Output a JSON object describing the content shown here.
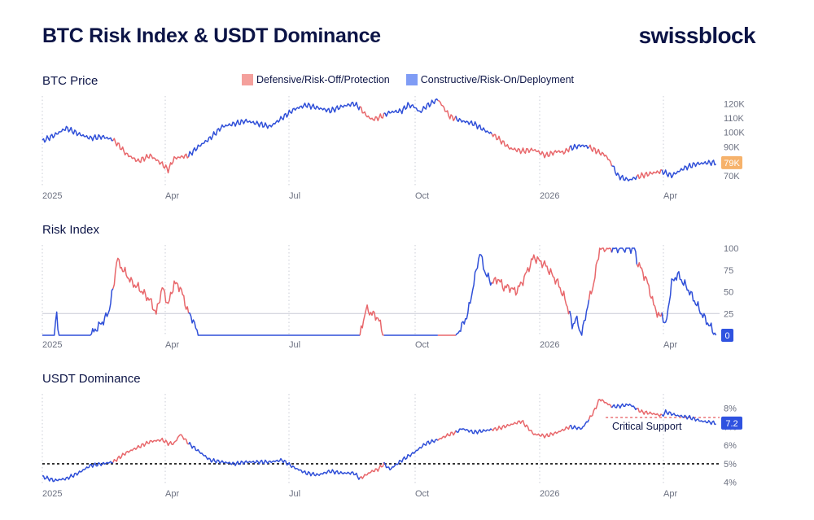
{
  "header": {
    "title": "BTC Risk Index & USDT Dominance",
    "brand": "swissblock"
  },
  "legend": {
    "defensive": {
      "label": "Defensive/Risk-Off/Protection",
      "color": "#f4a09c"
    },
    "constructive": {
      "label": "Constructive/Risk-On/Deployment",
      "color": "#7f9cf5"
    }
  },
  "colors": {
    "defensive_line": "#e8676b",
    "constructive_line": "#2f4fd8",
    "price_badge": "#f6b26b",
    "risk_badge": "#2f52e0",
    "usdt_badge": "#2f52e0"
  },
  "x_ticks": [
    "2025",
    "Apr",
    "Jul",
    "Oct",
    "2026",
    "Apr"
  ],
  "regime_segments": [
    {
      "start": 0,
      "end": 59,
      "regime": "constructive"
    },
    {
      "start": 59,
      "end": 122,
      "regime": "defensive"
    },
    {
      "start": 122,
      "end": 265,
      "regime": "constructive"
    },
    {
      "start": 265,
      "end": 285,
      "regime": "defensive"
    },
    {
      "start": 285,
      "end": 330,
      "regime": "constructive"
    },
    {
      "start": 330,
      "end": 345,
      "regime": "defensive"
    },
    {
      "start": 345,
      "end": 375,
      "regime": "constructive"
    },
    {
      "start": 375,
      "end": 440,
      "regime": "defensive"
    },
    {
      "start": 440,
      "end": 456,
      "regime": "constructive"
    },
    {
      "start": 456,
      "end": 475,
      "regime": "defensive"
    },
    {
      "start": 475,
      "end": 496,
      "regime": "constructive"
    },
    {
      "start": 496,
      "end": 517,
      "regime": "defensive"
    },
    {
      "start": 517,
      "end": 562,
      "regime": "constructive"
    }
  ],
  "chart_data": [
    {
      "type": "line",
      "title": "BTC Price",
      "y_ticks": [
        "120K",
        "110K",
        "100K",
        "90K",
        "80K",
        "70K"
      ],
      "ylim": [
        62000,
        123000
      ],
      "current_label": "79K",
      "series": [
        {
          "x": [
            0,
            10,
            20,
            30,
            40,
            50,
            59,
            65,
            70,
            80,
            90,
            100,
            105,
            110,
            122,
            130,
            140,
            150,
            160,
            170,
            180,
            190,
            200,
            210,
            220,
            225,
            230,
            240,
            250,
            260,
            265,
            270,
            275,
            280,
            285,
            290,
            300,
            305,
            310,
            315,
            320,
            330,
            340,
            350,
            360,
            370,
            375,
            380,
            390,
            400,
            410,
            420,
            430,
            435,
            440,
            450,
            456,
            460,
            470,
            475,
            480,
            485,
            490,
            496,
            500,
            510,
            517,
            525,
            535,
            545,
            555,
            562
          ],
          "y": [
            94000,
            98000,
            103000,
            99000,
            96000,
            97000,
            95000,
            90000,
            85000,
            80000,
            84000,
            78000,
            74000,
            82000,
            84000,
            90000,
            96000,
            104000,
            106000,
            108000,
            106000,
            104000,
            110000,
            116000,
            119000,
            118000,
            117000,
            115000,
            118000,
            120000,
            117000,
            112000,
            109000,
            110000,
            112000,
            114000,
            115000,
            119000,
            118000,
            114000,
            118000,
            123000,
            111000,
            108000,
            106000,
            101000,
            99000,
            96000,
            89000,
            87000,
            88000,
            84000,
            87000,
            86000,
            89000,
            91000,
            90000,
            88000,
            84000,
            78000,
            70000,
            68000,
            67000,
            69000,
            70000,
            72000,
            73000,
            70000,
            75000,
            78000,
            79000,
            79000
          ]
        }
      ]
    },
    {
      "type": "line",
      "title": "Risk Index",
      "y_ticks": [
        "100",
        "75",
        "50",
        "25",
        "0"
      ],
      "ylim": [
        0,
        100
      ],
      "reference_line": 25,
      "current_label": "0",
      "series": [
        {
          "x": [
            0,
            10,
            12,
            14,
            20,
            40,
            50,
            55,
            60,
            62,
            65,
            70,
            75,
            80,
            90,
            95,
            100,
            105,
            110,
            115,
            122,
            125,
            130,
            135,
            140,
            150,
            200,
            250,
            265,
            270,
            275,
            280,
            285,
            290,
            300,
            320,
            330,
            335,
            340,
            345,
            350,
            355,
            360,
            365,
            370,
            375,
            380,
            385,
            390,
            395,
            400,
            405,
            410,
            415,
            420,
            425,
            430,
            435,
            440,
            442,
            445,
            450,
            455,
            460,
            465,
            470,
            475,
            480,
            485,
            490,
            492,
            494,
            496,
            500,
            505,
            510,
            515,
            517,
            520,
            525,
            530,
            540,
            550,
            562
          ],
          "y": [
            0,
            0,
            25,
            0,
            0,
            0,
            15,
            25,
            60,
            88,
            80,
            70,
            60,
            55,
            40,
            25,
            55,
            35,
            60,
            55,
            25,
            20,
            0,
            0,
            0,
            0,
            0,
            0,
            0,
            30,
            25,
            20,
            0,
            0,
            0,
            0,
            0,
            0,
            0,
            0,
            10,
            25,
            60,
            95,
            70,
            60,
            65,
            55,
            55,
            50,
            60,
            75,
            90,
            85,
            80,
            70,
            60,
            45,
            25,
            10,
            20,
            0,
            35,
            60,
            100,
            100,
            100,
            100,
            100,
            100,
            100,
            100,
            85,
            75,
            60,
            35,
            20,
            25,
            10,
            60,
            70,
            50,
            25,
            0
          ]
        }
      ]
    },
    {
      "type": "line",
      "title": "USDT Dominance",
      "y_ticks": [
        "8%",
        "7%",
        "6%",
        "5%",
        "4%"
      ],
      "ylim": [
        3.9,
        8.6
      ],
      "reference_line": 5.0,
      "support_line": 7.5,
      "support_label": "Critical Support",
      "current_label": "7.2",
      "series": [
        {
          "x": [
            0,
            10,
            20,
            30,
            40,
            50,
            59,
            70,
            80,
            90,
            100,
            105,
            110,
            115,
            122,
            130,
            140,
            150,
            160,
            170,
            180,
            190,
            200,
            210,
            220,
            230,
            240,
            250,
            260,
            265,
            270,
            275,
            280,
            285,
            290,
            300,
            310,
            320,
            330,
            340,
            345,
            350,
            360,
            370,
            380,
            390,
            400,
            410,
            420,
            430,
            440,
            450,
            456,
            460,
            465,
            470,
            475,
            480,
            490,
            500,
            510,
            517,
            520,
            530,
            540,
            550,
            562
          ],
          "y": [
            4.3,
            4.1,
            4.2,
            4.5,
            4.9,
            5.0,
            5.1,
            5.6,
            5.9,
            6.2,
            6.3,
            6.1,
            6.1,
            6.6,
            6.1,
            5.7,
            5.2,
            5.1,
            5.0,
            5.1,
            5.1,
            5.1,
            5.2,
            4.8,
            4.5,
            4.4,
            4.6,
            4.5,
            4.5,
            4.2,
            4.4,
            4.6,
            4.7,
            5.0,
            4.7,
            5.2,
            5.6,
            6.1,
            6.3,
            6.6,
            6.7,
            6.9,
            6.7,
            6.8,
            6.9,
            7.1,
            7.3,
            6.6,
            6.5,
            6.7,
            7.0,
            6.9,
            7.4,
            7.8,
            8.5,
            8.3,
            8.1,
            8.1,
            8.2,
            7.8,
            7.7,
            7.6,
            7.8,
            7.6,
            7.5,
            7.3,
            7.2
          ]
        }
      ]
    }
  ]
}
